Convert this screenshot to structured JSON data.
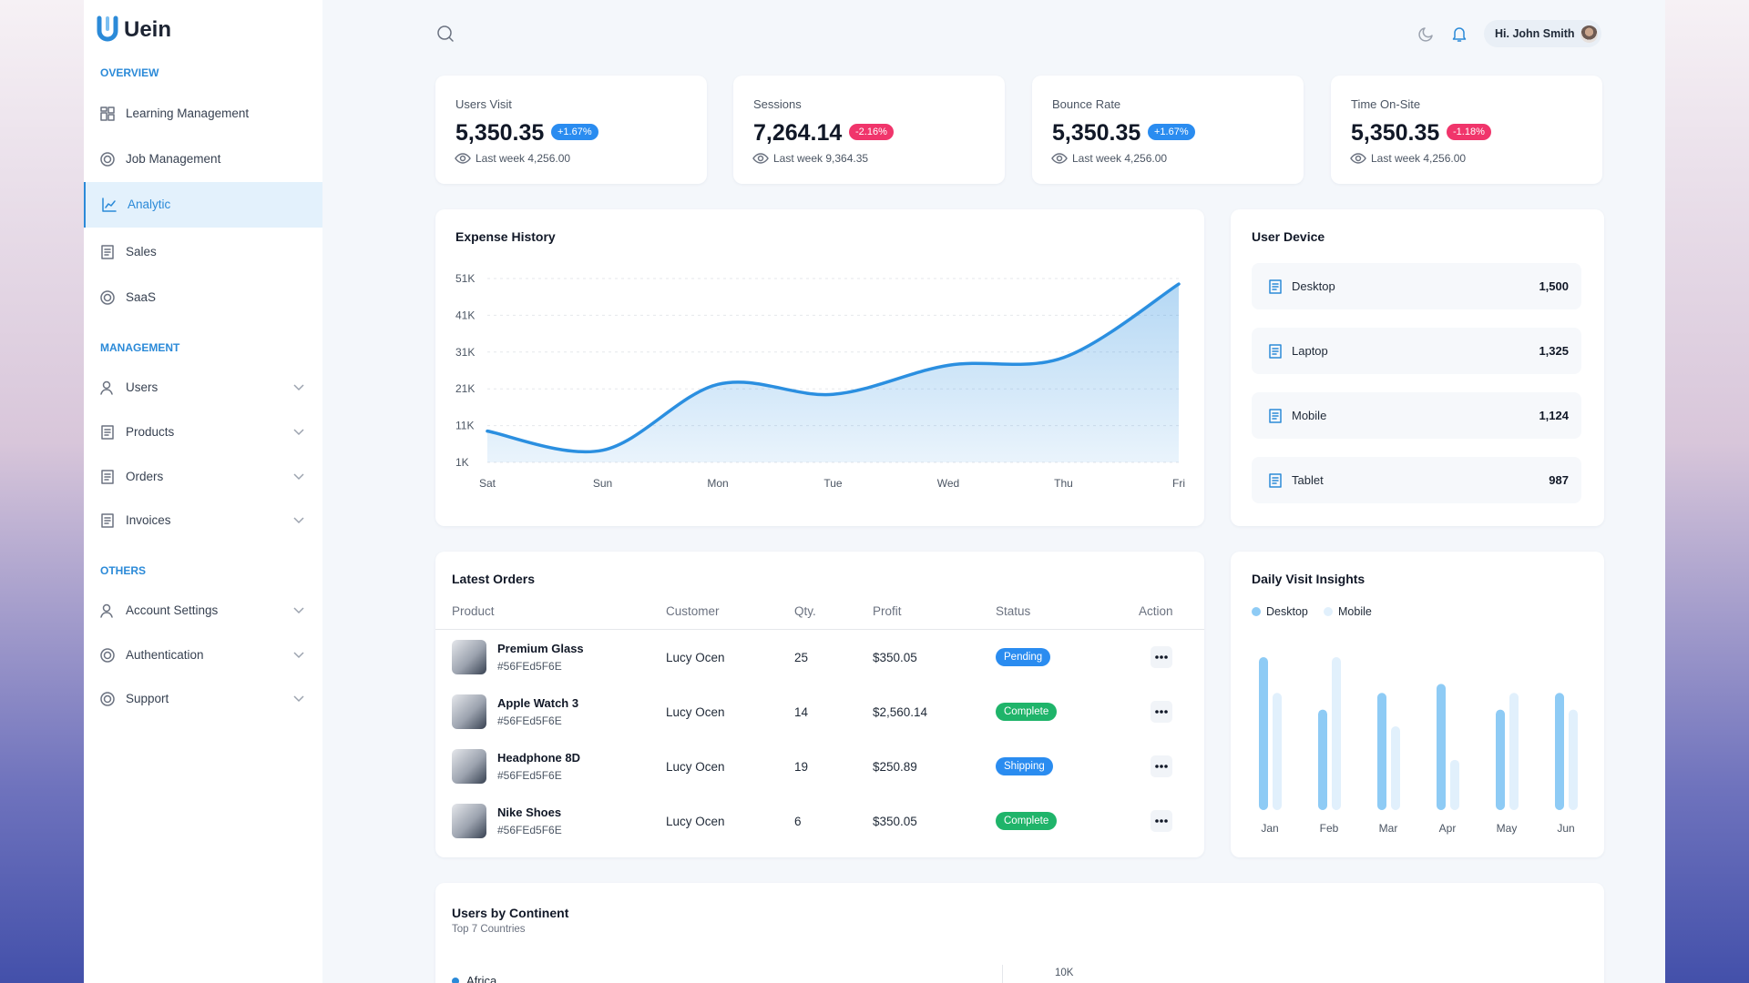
{
  "sidebar": {
    "logo": "Uein",
    "sections": [
      {
        "title": "OVERVIEW",
        "items": [
          {
            "label": "Learning Management"
          },
          {
            "label": "Job Management"
          },
          {
            "label": "Analytic",
            "active": true
          },
          {
            "label": "Sales"
          },
          {
            "label": "SaaS"
          }
        ]
      },
      {
        "title": "MANAGEMENT",
        "items": [
          {
            "label": "Users",
            "expandable": true
          },
          {
            "label": "Products",
            "expandable": true
          },
          {
            "label": "Orders",
            "expandable": true
          },
          {
            "label": "Invoices",
            "expandable": true
          }
        ]
      },
      {
        "title": "OTHERS",
        "items": [
          {
            "label": "Account Settings",
            "expandable": true
          },
          {
            "label": "Authentication",
            "expandable": true
          },
          {
            "label": "Support",
            "expandable": true
          }
        ]
      }
    ]
  },
  "header": {
    "greeting": "Hi. John Smith"
  },
  "stats": [
    {
      "title": "Users Visit",
      "value": "5,350.35",
      "change": "+1.67%",
      "trend": "up",
      "last_week": "Last week 4,256.00"
    },
    {
      "title": "Sessions",
      "value": "7,264.14",
      "change": "-2.16%",
      "trend": "down",
      "last_week": "Last week 9,364.35"
    },
    {
      "title": "Bounce Rate",
      "value": "5,350.35",
      "change": "+1.67%",
      "trend": "up",
      "last_week": "Last week 4,256.00"
    },
    {
      "title": "Time On-Site",
      "value": "5,350.35",
      "change": "-1.18%",
      "trend": "down",
      "last_week": "Last week 4,256.00"
    }
  ],
  "expense_history": {
    "type": "line",
    "title": "Expense History",
    "categories": [
      "Sat",
      "Sun",
      "Mon",
      "Tue",
      "Wed",
      "Thu",
      "Fri"
    ],
    "values": [
      9500,
      4300,
      22200,
      19500,
      27400,
      29500,
      49500
    ],
    "color": "#2b8fe0",
    "ylim": [
      1000,
      51000
    ],
    "yticks": [
      {
        "value": 51000,
        "label": "51K"
      },
      {
        "value": 41000,
        "label": "41K"
      },
      {
        "value": 31000,
        "label": "31K"
      },
      {
        "value": 21000,
        "label": "21K"
      },
      {
        "value": 11000,
        "label": "11K"
      },
      {
        "value": 1000,
        "label": "1K"
      }
    ],
    "grid": true
  },
  "user_device": {
    "title": "User Device",
    "devices": [
      {
        "name": "Desktop",
        "count": "1,500"
      },
      {
        "name": "Laptop",
        "count": "1,325"
      },
      {
        "name": "Mobile",
        "count": "1,124"
      },
      {
        "name": "Tablet",
        "count": "987"
      }
    ]
  },
  "latest_orders": {
    "title": "Latest Orders",
    "columns": [
      "Product",
      "Customer",
      "Qty.",
      "Profit",
      "Status",
      "Action"
    ],
    "rows": [
      {
        "product": "Premium Glass",
        "sku": "#56FEd5F6E",
        "customer": "Lucy Ocen",
        "qty": 25,
        "profit": "$350.05",
        "status": "Pending",
        "status_color": "#2a8cf0"
      },
      {
        "product": "Apple Watch 3",
        "sku": "#56FEd5F6E",
        "customer": "Lucy Ocen",
        "qty": 14,
        "profit": "$2,560.14",
        "status": "Complete",
        "status_color": "#1fb46a"
      },
      {
        "product": "Headphone 8D",
        "sku": "#56FEd5F6E",
        "customer": "Lucy Ocen",
        "qty": 19,
        "profit": "$250.89",
        "status": "Shipping",
        "status_color": "#2a8cf0"
      },
      {
        "product": "Nike Shoes",
        "sku": "#56FEd5F6E",
        "customer": "Lucy Ocen",
        "qty": 6,
        "profit": "$350.05",
        "status": "Complete",
        "status_color": "#1fb46a"
      }
    ]
  },
  "daily_visit": {
    "type": "bar",
    "title": "Daily Visit Insights",
    "categories": [
      "Jan",
      "Feb",
      "Mar",
      "Apr",
      "May",
      "Jun"
    ],
    "series": [
      {
        "name": "Desktop",
        "color": "#8ecbf5",
        "values": [
          137,
          90,
          105,
          113,
          90,
          105
        ]
      },
      {
        "name": "Mobile",
        "color": "#e1f0fc",
        "values": [
          105,
          137,
          75,
          45,
          105,
          90
        ]
      }
    ]
  },
  "users_by_continent": {
    "title": "Users by Continent",
    "subtitle": "Top 7 Countries",
    "legend": [
      "Africa"
    ],
    "yticks": [
      {
        "value": 10000,
        "label": "10K"
      }
    ]
  }
}
